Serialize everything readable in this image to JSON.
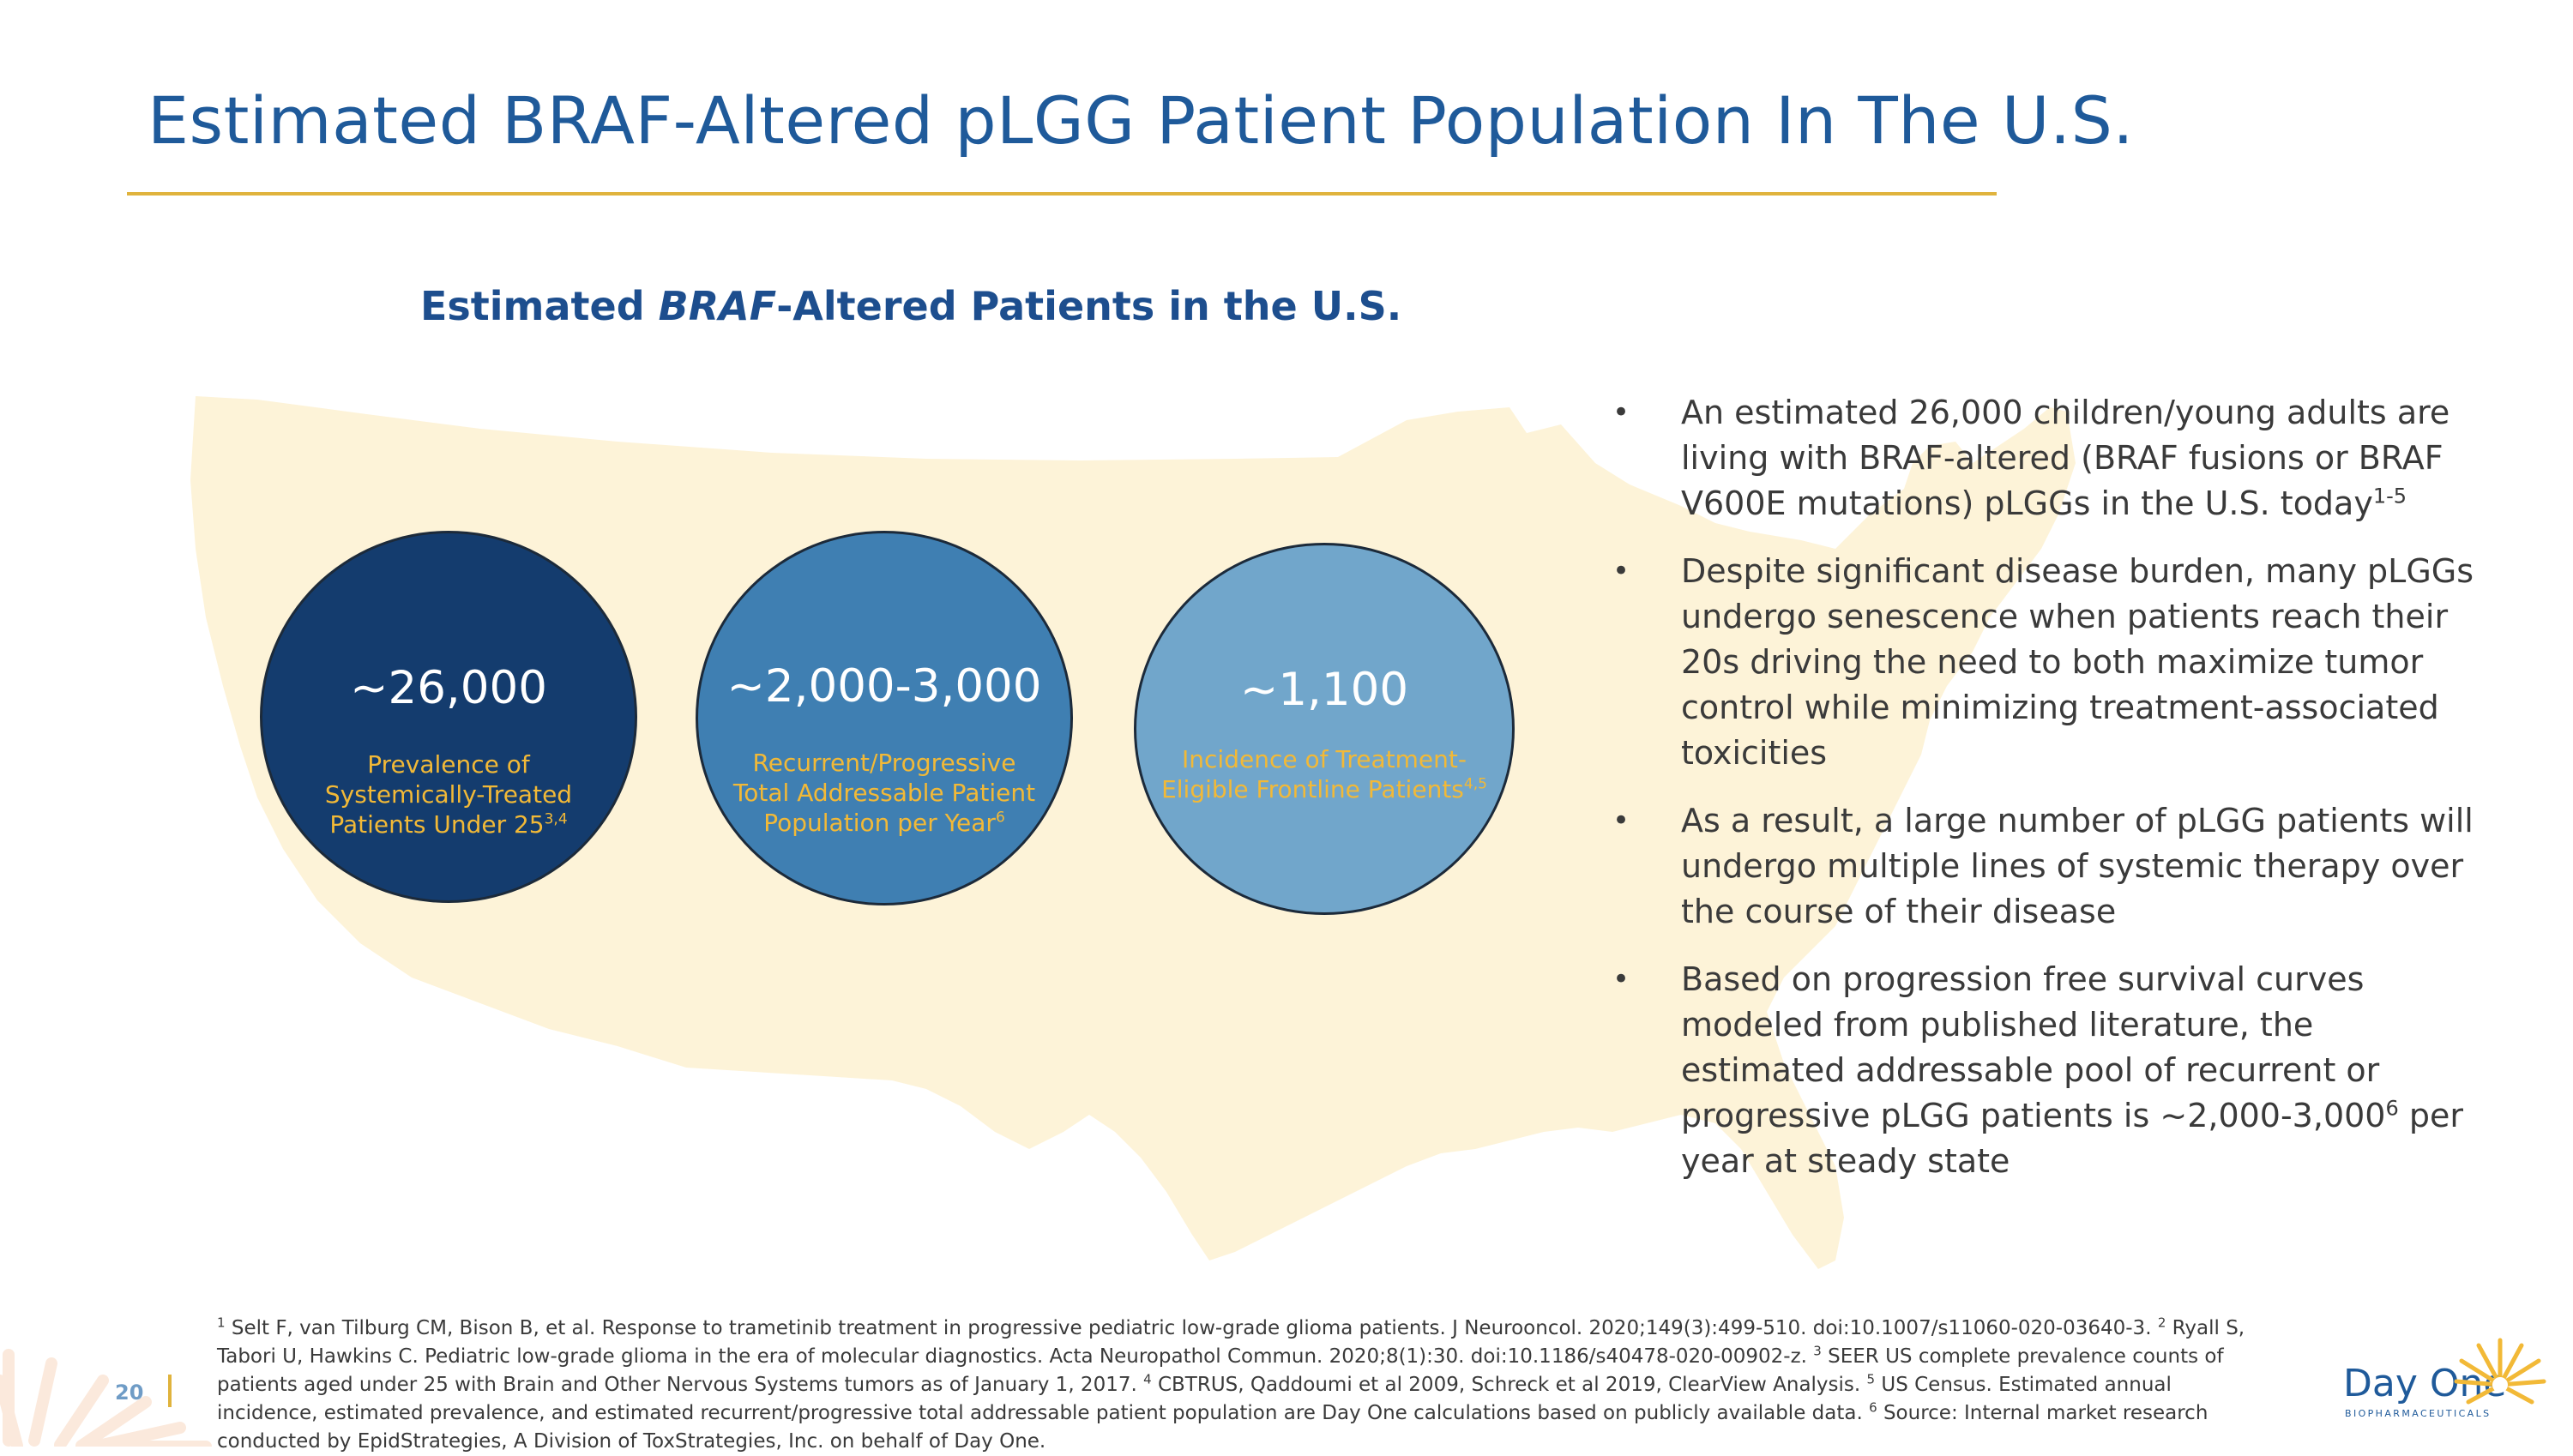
{
  "slide": {
    "title": "Estimated BRAF-Altered pLGG Patient Population In The U.S.",
    "subtitle_pre": "Estimated ",
    "subtitle_gene": "BRAF",
    "subtitle_post": "-Altered Patients in the U.S."
  },
  "circles": [
    {
      "value": "~26,000",
      "desc_lines": [
        "Prevalence of",
        "Systemically-Treated",
        "Patients Under 25"
      ],
      "sup": "3,4",
      "color": "#143c6e"
    },
    {
      "value": "~2,000-3,000",
      "desc_lines": [
        "Recurrent/Progressive",
        "Total Addressable Patient",
        "Population per Year"
      ],
      "sup": "6",
      "color": "#3f7fb2"
    },
    {
      "value": "~1,100",
      "desc_lines": [
        "Incidence of Treatment-",
        "Eligible Frontline Patients"
      ],
      "sup": "4,5",
      "color": "#71a6cb"
    }
  ],
  "bullets": [
    {
      "bullet": "•",
      "text": "An estimated 26,000 children/young adults are living with BRAF-altered (BRAF fusions or BRAF V600E mutations) pLGGs in the U.S. today",
      "sup": "1-5",
      "tail": ""
    },
    {
      "bullet": "•",
      "text": "Despite significant disease burden, many pLGGs undergo senescence when patients reach their 20s driving the need to both maximize tumor control while minimizing treatment-associated toxicities",
      "sup": "",
      "tail": ""
    },
    {
      "bullet": "•",
      "text": "As a result, a large number of pLGG patients will undergo multiple lines of systemic therapy over the course of their disease",
      "sup": "",
      "tail": ""
    },
    {
      "bullet": "•",
      "text": "Based on progression free survival curves modeled from published literature, the estimated addressable pool of recurrent or progressive pLGG patients is ~2,000-3,000",
      "sup": "6",
      "tail": " per year at steady state"
    }
  ],
  "footnotes": [
    {
      "sup": "1",
      "text": " Selt F, van Tilburg CM, Bison B, et al. Response to trametinib treatment in progressive pediatric low-grade glioma patients. J Neurooncol. 2020;149(3):499-510. doi:10.1007/s11060-020-03640-3. "
    },
    {
      "sup": "2",
      "text": " Ryall S, Tabori U, Hawkins C. Pediatric low-grade glioma in the era of molecular diagnostics. Acta Neuropathol Commun. 2020;8(1):30. doi:10.1186/s40478-020-00902-z. "
    },
    {
      "sup": "3",
      "text": " SEER US complete prevalence counts of patients aged under 25 with Brain and Other Nervous Systems tumors as of January 1, 2017. "
    },
    {
      "sup": "4",
      "text": " CBTRUS, Qaddoumi et al 2009, Schreck et al 2019, ClearView Analysis. "
    },
    {
      "sup": "5",
      "text": " US Census. Estimated annual incidence, estimated prevalence, and estimated recurrent/progressive total addressable patient population are Day One calculations based on publicly available data. "
    },
    {
      "sup": "6",
      "text": " Source: Internal market research conducted by EpidStrategies, A Division of ToxStrategies, Inc. on behalf of Day One."
    }
  ],
  "footer": {
    "page_number": "20",
    "logo_name": "Day One",
    "logo_sub": "BIOPHARMACEUTICALS"
  },
  "colors": {
    "title": "#1f5a9a",
    "accent": "#e0b33d",
    "map": "#fdf3d8",
    "circle_text": "#f2b937"
  }
}
